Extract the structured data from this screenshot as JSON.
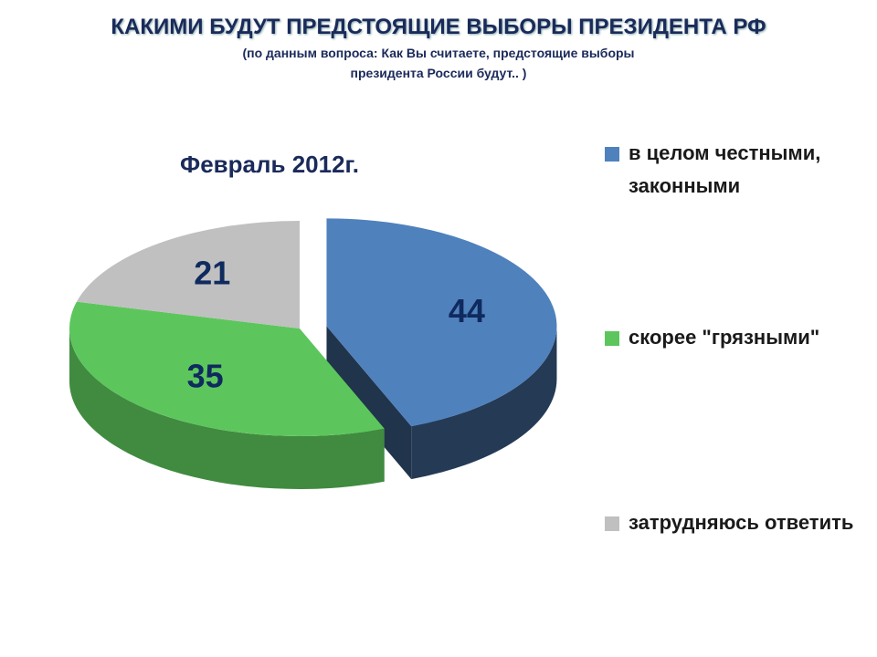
{
  "chart_data": {
    "type": "pie",
    "title": "КАКИМИ БУДУТ ПРЕДСТОЯЩИЕ ВЫБОРЫ ПРЕЗИДЕНТА РФ",
    "subtitle": [
      "(по данным вопроса: Как Вы считаете, предстоящие выборы",
      "президента России будут.. )"
    ],
    "annotation": "Февраль 2012г.",
    "categories": [
      "в целом честными, законными",
      "скорее \"грязными\"",
      "затрудняюсь ответить"
    ],
    "values": [
      44,
      35,
      21
    ],
    "colors": [
      "#4f81bd",
      "#5cc65c",
      "#c0c0c0"
    ],
    "legend": "right"
  }
}
